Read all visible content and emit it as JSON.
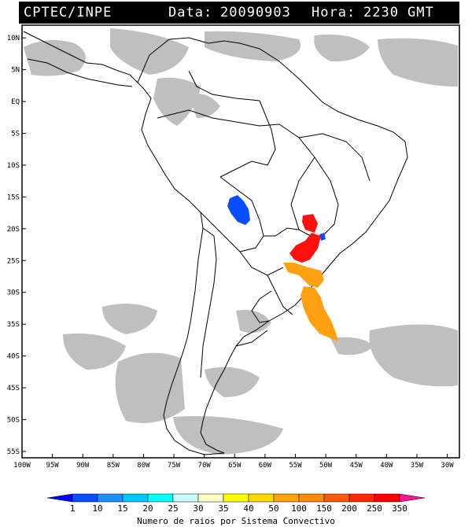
{
  "header": {
    "source": "CPTEC/INPE",
    "date_label": "Data:",
    "date": "20090903",
    "time_label": "Hora:",
    "time": "2230",
    "tz": "GMT"
  },
  "axes": {
    "lat_ticks": [
      "10N",
      "5N",
      "EQ",
      "5S",
      "10S",
      "15S",
      "20S",
      "25S",
      "30S",
      "35S",
      "40S",
      "45S",
      "50S",
      "55S"
    ],
    "lon_ticks": [
      "100W",
      "95W",
      "90W",
      "85W",
      "80W",
      "75W",
      "70W",
      "65W",
      "60W",
      "55W",
      "50W",
      "45W",
      "40W",
      "35W",
      "30W"
    ],
    "lat_range": [
      -56,
      12
    ],
    "lon_range": [
      -100,
      -28
    ]
  },
  "colorbar": {
    "title": "Numero de raios por Sistema Convectivo",
    "labels": [
      "1",
      "10",
      "15",
      "20",
      "25",
      "30",
      "35",
      "40",
      "50",
      "100",
      "150",
      "200",
      "250",
      "350"
    ],
    "colors": [
      "#0000ff",
      "#0a4cff",
      "#1e90ff",
      "#00c8ff",
      "#00ffff",
      "#c8ffff",
      "#ffffc8",
      "#ffff00",
      "#ffd700",
      "#ffa500",
      "#ff8c00",
      "#ff5a00",
      "#ff2a00",
      "#ff0000",
      "#ff1493"
    ]
  },
  "colors": {
    "cloud": "#b4b4b4",
    "coast": "#000000",
    "frame": "#000000"
  },
  "systems": [
    {
      "name": "system-blue-bolivia",
      "level": "1",
      "color": "#0a4cff"
    },
    {
      "name": "system-blue-small",
      "level": "1",
      "color": "#0a4cff"
    },
    {
      "name": "system-red-paraguay",
      "level": "350",
      "color": "#ff1010"
    },
    {
      "name": "system-red-parana",
      "level": "350",
      "color": "#ff1010"
    },
    {
      "name": "system-orange-south-brazil",
      "level": "100",
      "color": "#ffa010"
    },
    {
      "name": "system-orange-uruguay-ocean",
      "level": "100",
      "color": "#ffa010"
    }
  ]
}
